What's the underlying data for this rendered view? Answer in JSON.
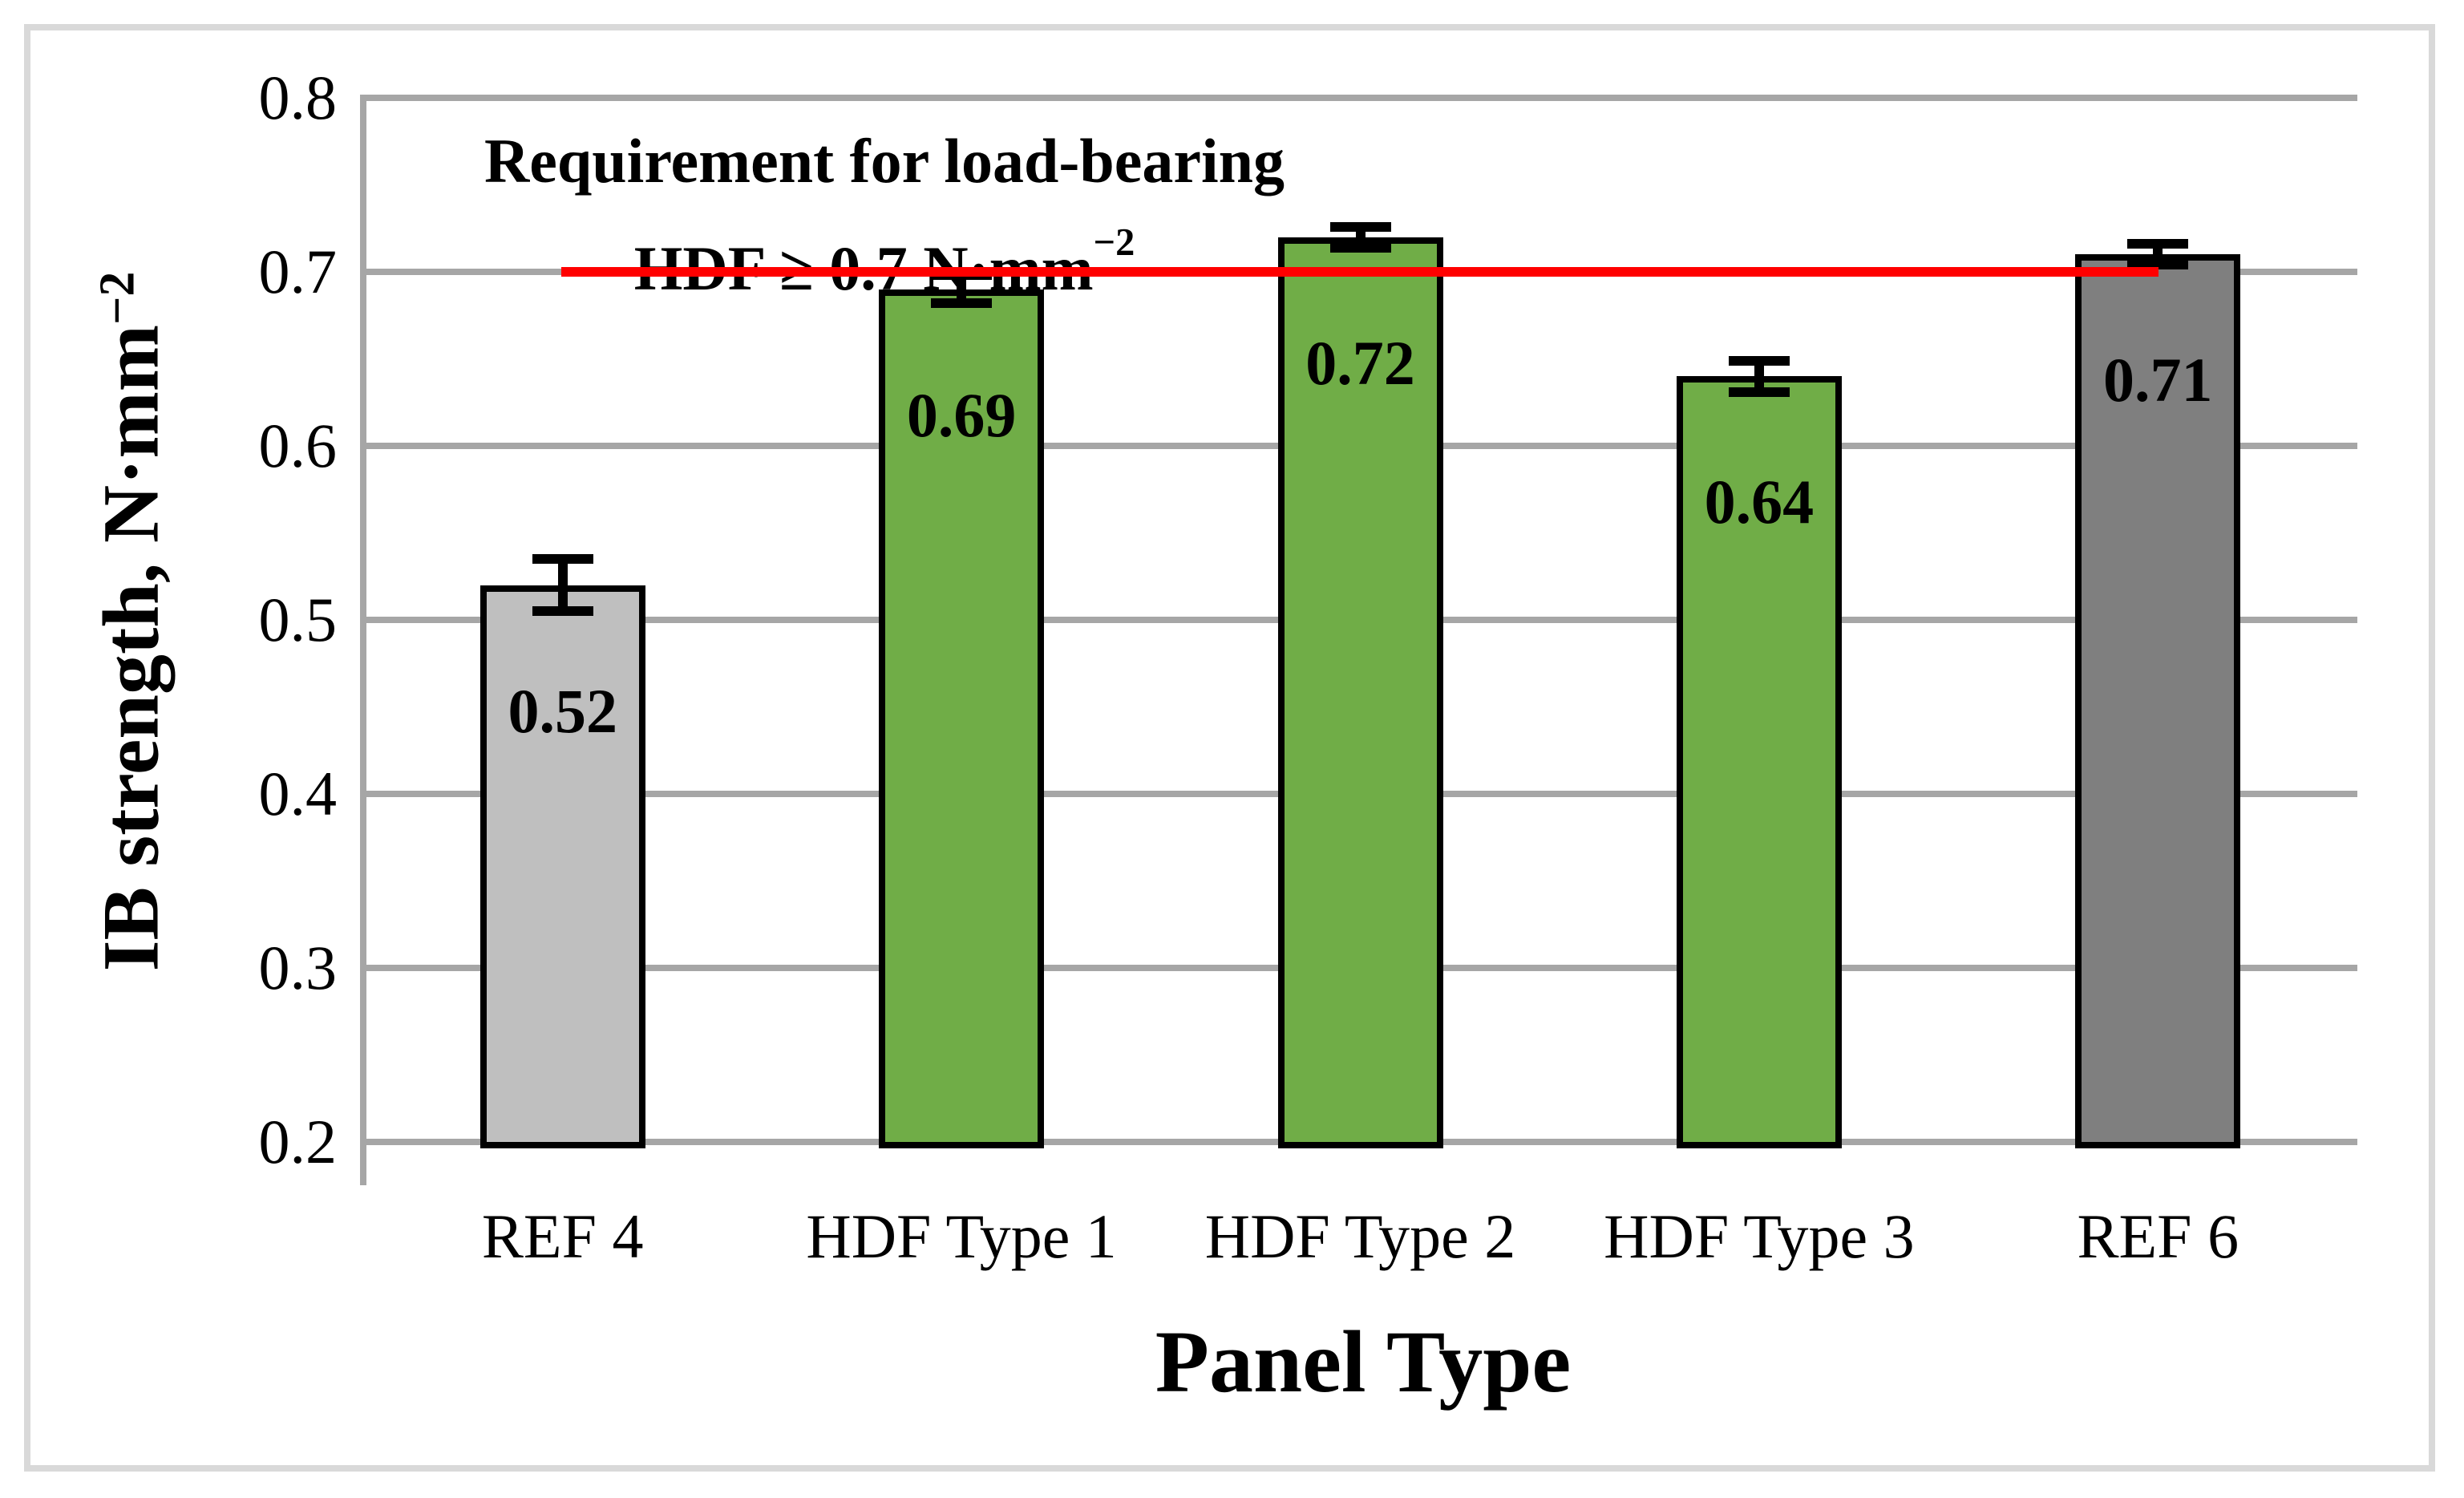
{
  "figure": {
    "annotation": {
      "line1": "Requirement for load-bearing",
      "line2_main": "HDF  ≥ 0.7 N·mm",
      "line2_sup": "−2"
    },
    "x_axis_title": "Panel Type",
    "y_axis_title_main": "IB strength, N·mm",
    "y_axis_title_sup": "−2"
  },
  "colors": {
    "background": "#FFFFFF",
    "frame_border": "#D9D9D9",
    "gridline": "#A6A6A6",
    "axis_line": "#A6A6A6",
    "bar_border": "#000000",
    "text": "#000000",
    "threshold_red": "#FF0000",
    "green_bar": "#70AD47",
    "light_gray_bar": "#BFBFBF",
    "dark_gray_bar": "#7F7F7F"
  },
  "chart_data": {
    "type": "bar",
    "title": "",
    "xlabel": "Panel Type",
    "ylabel": "IB strength, N·mm⁻²",
    "categories": [
      "REF 4",
      "HDF Type 1",
      "HDF Type 2",
      "HDF Type 3",
      "REF 6"
    ],
    "values": [
      0.52,
      0.69,
      0.72,
      0.64,
      0.71
    ],
    "value_labels": [
      "0.52",
      "0.69",
      "0.72",
      "0.64",
      "0.71"
    ],
    "errors": [
      0.015,
      0.008,
      0.006,
      0.009,
      0.006
    ],
    "bar_colors": [
      "#BFBFBF",
      "#70AD47",
      "#70AD47",
      "#70AD47",
      "#7F7F7F"
    ],
    "ylim": [
      0.2,
      0.8
    ],
    "ytick_step": 0.1,
    "ytick_labels": [
      "0.8",
      "0.7",
      "0.6",
      "0.5",
      "0.4",
      "0.3",
      "0.2"
    ],
    "grid": true,
    "legend": false,
    "threshold_line": {
      "value": 0.7,
      "color": "#FF0000",
      "label": "Requirement for load-bearing HDF ≥ 0.7 N·mm⁻²"
    }
  }
}
